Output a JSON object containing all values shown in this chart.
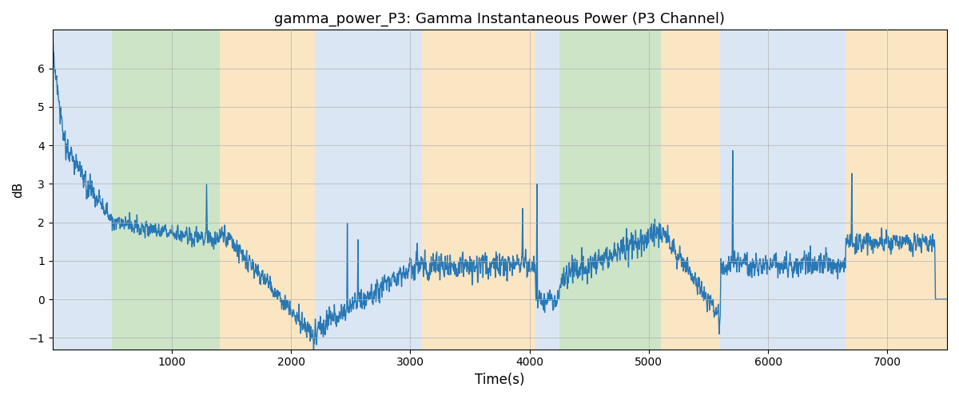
{
  "title": "gamma_power_P3: Gamma Instantaneous Power (P3 Channel)",
  "xlabel": "Time(s)",
  "ylabel": "dB",
  "xlim": [
    0,
    7500
  ],
  "ylim": [
    -1.3,
    7.0
  ],
  "yticks": [
    -1,
    0,
    1,
    2,
    3,
    4,
    5,
    6
  ],
  "xticks": [
    1000,
    2000,
    3000,
    4000,
    5000,
    6000,
    7000
  ],
  "line_color": "#2878b5",
  "line_width": 1.0,
  "bg_color": "#ffffff",
  "grid_color": "#b0b0b0",
  "bands": [
    {
      "xmin": 0,
      "xmax": 500,
      "color": "#adc8e6",
      "alpha": 0.45
    },
    {
      "xmin": 500,
      "xmax": 1400,
      "color": "#90c484",
      "alpha": 0.45
    },
    {
      "xmin": 1400,
      "xmax": 2200,
      "color": "#f5c97a",
      "alpha": 0.45
    },
    {
      "xmin": 2200,
      "xmax": 3100,
      "color": "#adc8e6",
      "alpha": 0.45
    },
    {
      "xmin": 3100,
      "xmax": 4050,
      "color": "#f5c97a",
      "alpha": 0.45
    },
    {
      "xmin": 4050,
      "xmax": 4250,
      "color": "#adc8e6",
      "alpha": 0.45
    },
    {
      "xmin": 4250,
      "xmax": 5100,
      "color": "#90c484",
      "alpha": 0.45
    },
    {
      "xmin": 5100,
      "xmax": 5600,
      "color": "#f5c97a",
      "alpha": 0.45
    },
    {
      "xmin": 5600,
      "xmax": 6650,
      "color": "#adc8e6",
      "alpha": 0.45
    },
    {
      "xmin": 6650,
      "xmax": 7500,
      "color": "#f5c97a",
      "alpha": 0.45
    }
  ],
  "seed": 17,
  "n_points": 7400
}
